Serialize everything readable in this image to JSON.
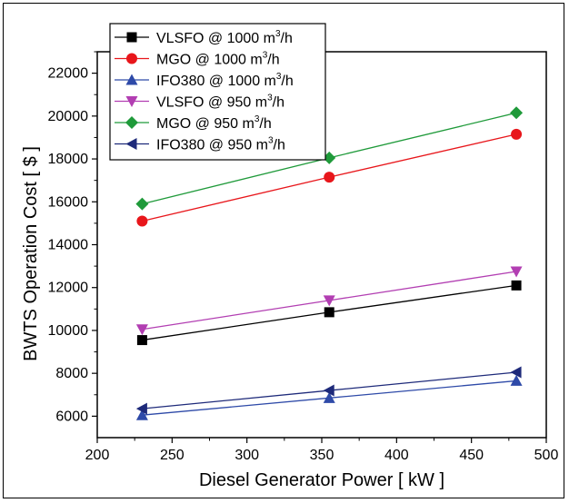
{
  "chart_data": {
    "type": "line",
    "title": "",
    "xlabel": "Diesel Generator Power [ kW ]",
    "ylabel": "BWTS Operation Cost [ $ ]",
    "xlim": [
      200,
      500
    ],
    "ylim": [
      5000,
      23000
    ],
    "xticks": [
      200,
      250,
      300,
      350,
      400,
      450,
      500
    ],
    "yticks": [
      6000,
      8000,
      10000,
      12000,
      14000,
      16000,
      18000,
      20000,
      22000
    ],
    "grid": false,
    "legend_position": "top-left",
    "x": [
      230,
      355,
      480
    ],
    "series": [
      {
        "name": "VLSFO @ 1000 m",
        "unit_sup": "3",
        "unit_tail": "/h",
        "color": "#000000",
        "marker": "square",
        "values": [
          9550,
          10850,
          12100
        ]
      },
      {
        "name": "MGO @ 1000 m",
        "unit_sup": "3",
        "unit_tail": "/h",
        "color": "#e8161b",
        "marker": "circle",
        "values": [
          15100,
          17150,
          19150
        ]
      },
      {
        "name": "IFO380 @ 1000 m",
        "unit_sup": "3",
        "unit_tail": "/h",
        "color": "#2e4aa8",
        "marker": "triangle-up",
        "values": [
          6050,
          6850,
          7650
        ]
      },
      {
        "name": "VLSFO @ 950 m",
        "unit_sup": "3",
        "unit_tail": "/h",
        "color": "#b23eb2",
        "marker": "triangle-down",
        "values": [
          10050,
          11400,
          12750
        ]
      },
      {
        "name": "MGO @ 950 m",
        "unit_sup": "3",
        "unit_tail": "/h",
        "color": "#1f9a3a",
        "marker": "diamond",
        "values": [
          15900,
          18050,
          20150
        ]
      },
      {
        "name": "IFO380 @ 950 m",
        "unit_sup": "3",
        "unit_tail": "/h",
        "color": "#1e2a7a",
        "marker": "triangle-left",
        "values": [
          6350,
          7200,
          8050
        ]
      }
    ]
  }
}
